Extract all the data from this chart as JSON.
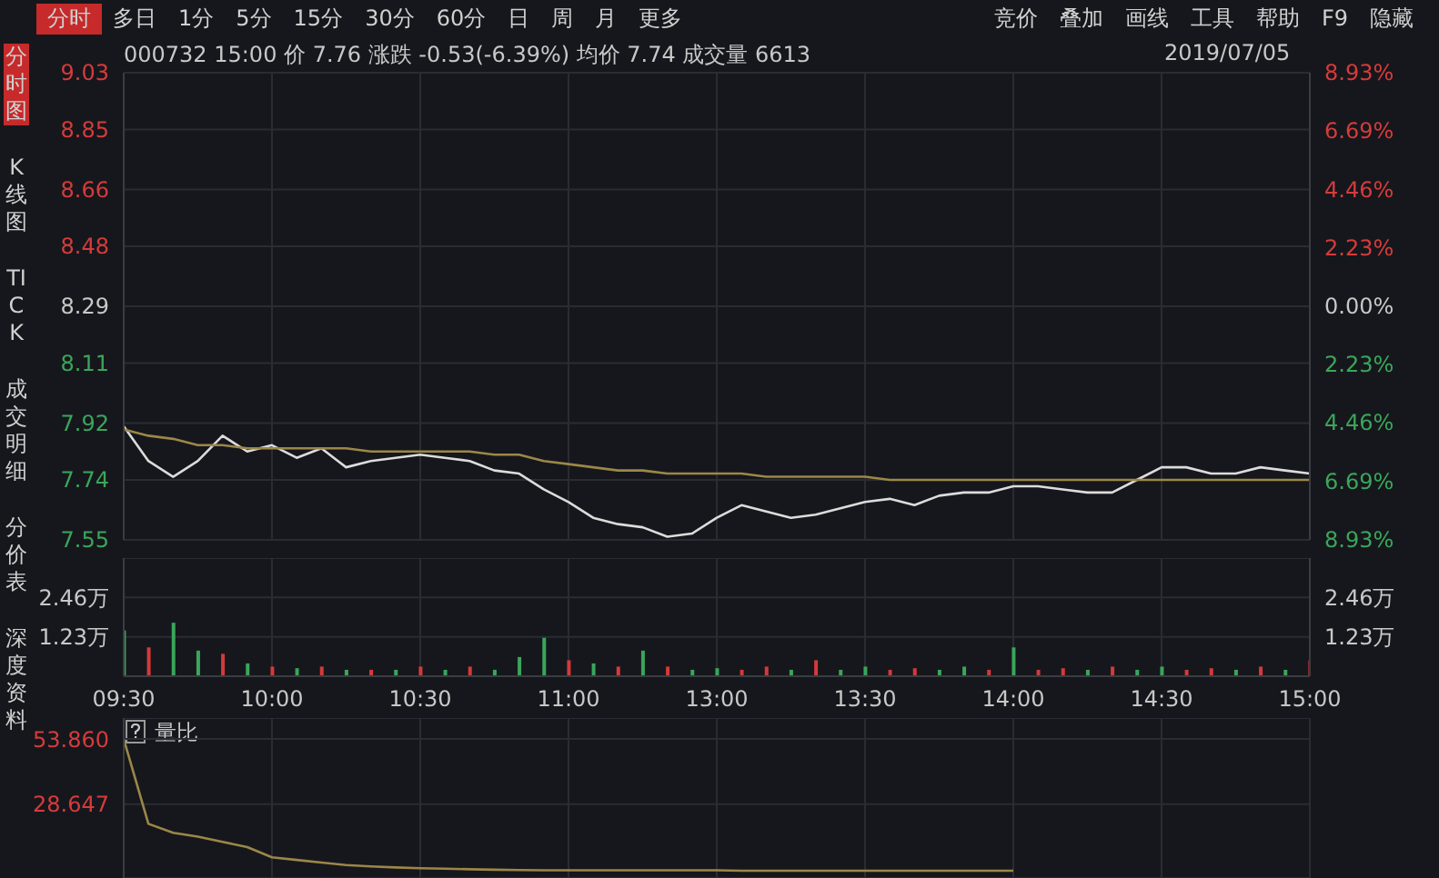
{
  "chart_data": [
    {
      "type": "line",
      "title": "000732 15:00 价 7.76 涨跌 -0.53(-6.39%) 均价 7.74 成交量 6613",
      "subtitle": "2019/07/05",
      "annotations": [
        "分时",
        "多日",
        "1分",
        "5分",
        "15分",
        "30分",
        "60分",
        "日",
        "周",
        "月",
        "更多"
      ],
      "categories": [
        null,
        null,
        null,
        null,
        null,
        null,
        null,
        null,
        null,
        null,
        null,
        null,
        null,
        null,
        null,
        null,
        null,
        null,
        null,
        null,
        null,
        null,
        null,
        null,
        null,
        null,
        null,
        null,
        null,
        null,
        null,
        null,
        null,
        null,
        null,
        null,
        null,
        null,
        null,
        null,
        null,
        null,
        null,
        null,
        null,
        null,
        null,
        null,
        null
      ],
      "ylim": [
        7.55,
        9.03
      ],
      "yticks": [
        7.55,
        7.74,
        7.92,
        8.11,
        8.29,
        8.48,
        8.66,
        8.85,
        9.03
      ],
      "y2lim": [
        -8.93,
        8.93
      ],
      "y2ticks": [
        {
          "value": -8.93,
          "label": "8.93%"
        },
        {
          "value": -6.69,
          "label": "6.69%"
        },
        {
          "value": -4.46,
          "label": "4.46%"
        },
        {
          "value": -2.23,
          "label": "2.23%"
        },
        {
          "value": 0,
          "label": "0.00%"
        },
        {
          "value": 2.23,
          "label": "2.23%"
        },
        {
          "value": 4.46,
          "label": "4.46%"
        },
        {
          "value": 6.69,
          "label": "6.69%"
        },
        {
          "value": 8.93,
          "label": "8.93%"
        }
      ],
      "grid": true,
      "tick_labels": "y",
      "marker": "none",
      "series": [
        {
          "color": "#dcdcdc",
          "values": [
            7.91,
            7.8,
            7.75,
            7.8,
            7.88,
            7.83,
            7.85,
            7.81,
            7.84,
            7.78,
            7.8,
            7.81,
            7.82,
            7.81,
            7.8,
            7.77,
            7.76,
            7.71,
            7.67,
            7.62,
            7.6,
            7.59,
            7.56,
            7.57,
            7.62,
            7.66,
            7.64,
            7.62,
            7.63,
            7.65,
            7.67,
            7.68,
            7.66,
            7.69,
            7.7,
            7.7,
            7.72,
            7.72,
            7.71,
            7.7,
            7.7,
            7.74,
            7.78,
            7.78,
            7.76,
            7.76,
            7.78,
            7.77,
            7.76
          ]
        },
        {
          "color": "#9c8748",
          "values": [
            7.9,
            7.88,
            7.87,
            7.85,
            7.85,
            7.84,
            7.84,
            7.84,
            7.84,
            7.84,
            7.83,
            7.83,
            7.83,
            7.83,
            7.83,
            7.82,
            7.82,
            7.8,
            7.79,
            7.78,
            7.77,
            7.77,
            7.76,
            7.76,
            7.76,
            7.76,
            7.75,
            7.75,
            7.75,
            7.75,
            7.75,
            7.74,
            7.74,
            7.74,
            7.74,
            7.74,
            7.74,
            7.74,
            7.74,
            7.74,
            7.74,
            7.74,
            7.74,
            7.74,
            7.74,
            7.74,
            7.74,
            7.74,
            7.74
          ]
        }
      ]
    },
    {
      "type": "bar",
      "annotations": [
        "竞价",
        "叠加",
        "画线",
        "工具",
        "帮助",
        "F9",
        "隐藏"
      ],
      "categories": [
        "09:30",
        null,
        null,
        null,
        null,
        null,
        "10:00",
        null,
        null,
        null,
        null,
        null,
        "10:30",
        null,
        null,
        null,
        null,
        null,
        "11:00",
        null,
        null,
        null,
        null,
        null,
        "13:00",
        null,
        null,
        null,
        null,
        null,
        "13:30",
        null,
        null,
        null,
        null,
        null,
        "14:00",
        null,
        null,
        null,
        null,
        null,
        "14:30",
        null,
        null,
        null,
        null,
        null,
        "15:00"
      ],
      "ylim": [
        0,
        3.69
      ],
      "yticks": [
        {
          "value": 1.23,
          "label": "1.23万"
        },
        {
          "value": 2.46,
          "label": "2.46万"
        }
      ],
      "y2lim": [
        0,
        3.69
      ],
      "y2ticks": [
        {
          "value": 1.23,
          "label": "1.23万"
        },
        {
          "value": 2.46,
          "label": "2.46万"
        }
      ],
      "grid": true,
      "values": [
        1.43,
        0.9,
        1.67,
        0.8,
        0.7,
        0.4,
        0.3,
        0.25,
        0.3,
        0.2,
        0.2,
        0.2,
        0.3,
        0.2,
        0.3,
        0.2,
        0.6,
        1.2,
        0.5,
        0.4,
        0.3,
        0.8,
        0.3,
        0.2,
        0.25,
        0.2,
        0.3,
        0.2,
        0.5,
        0.2,
        0.3,
        0.2,
        0.25,
        0.2,
        0.3,
        0.2,
        0.9,
        0.2,
        0.25,
        0.2,
        0.3,
        0.2,
        0.3,
        0.2,
        0.25,
        0.2,
        0.3,
        0.2,
        0.5
      ],
      "colors": [
        "#3aa65a",
        "#d33a3a",
        "#3aa65a",
        "#3aa65a",
        "#d33a3a",
        "#3aa65a",
        "#d33a3a",
        "#3aa65a",
        "#d33a3a",
        "#3aa65a",
        "#d33a3a",
        "#3aa65a",
        "#d33a3a",
        "#3aa65a",
        "#d33a3a",
        "#3aa65a",
        "#3aa65a",
        "#3aa65a",
        "#d33a3a",
        "#3aa65a",
        "#d33a3a",
        "#3aa65a",
        "#d33a3a",
        "#3aa65a",
        "#3aa65a",
        "#d33a3a",
        "#d33a3a",
        "#3aa65a",
        "#d33a3a",
        "#3aa65a",
        "#3aa65a",
        "#d33a3a",
        "#d33a3a",
        "#3aa65a",
        "#3aa65a",
        "#d33a3a",
        "#3aa65a",
        "#d33a3a",
        "#d33a3a",
        "#3aa65a",
        "#d33a3a",
        "#3aa65a",
        "#3aa65a",
        "#d33a3a",
        "#d33a3a",
        "#3aa65a",
        "#d33a3a",
        "#3aa65a",
        "#d33a3a"
      ]
    },
    {
      "type": "line",
      "title": "量比",
      "annotations": [
        "分时图",
        "K线图",
        "TICK",
        "成交明细",
        "分价表",
        "深度资料"
      ],
      "categories": [
        null,
        null,
        null,
        null,
        null,
        null,
        null,
        null,
        null,
        null,
        null,
        null,
        null,
        null,
        null,
        null,
        null,
        null,
        null,
        null,
        null,
        null,
        null,
        null,
        null,
        null,
        null,
        null,
        null,
        null,
        null,
        null,
        null,
        null,
        null,
        null,
        null,
        null,
        null,
        null,
        null,
        null,
        null,
        null,
        null,
        null,
        null,
        null,
        null
      ],
      "ylim": [
        0,
        62
      ],
      "yticks": [
        {
          "value": 28.647,
          "label": "28.647"
        },
        {
          "value": 53.86,
          "label": "53.860"
        }
      ],
      "grid": true,
      "tick_labels": "y",
      "marker": "none",
      "series": [
        {
          "color": "#9c8748",
          "values": [
            53.9,
            21,
            17.5,
            16,
            14,
            12,
            8,
            7,
            6,
            5,
            4.5,
            4.1,
            3.8,
            3.6,
            3.4,
            3.2,
            3.1,
            3,
            3,
            3,
            3,
            3,
            3,
            3,
            3,
            2.8,
            2.8,
            2.8,
            2.8,
            2.8,
            2.8,
            2.8,
            2.8,
            2.8,
            2.8,
            2.8,
            2.8,
            null,
            null,
            null,
            null,
            null,
            null,
            null,
            null,
            null,
            null,
            null,
            null
          ]
        }
      ]
    }
  ]
}
